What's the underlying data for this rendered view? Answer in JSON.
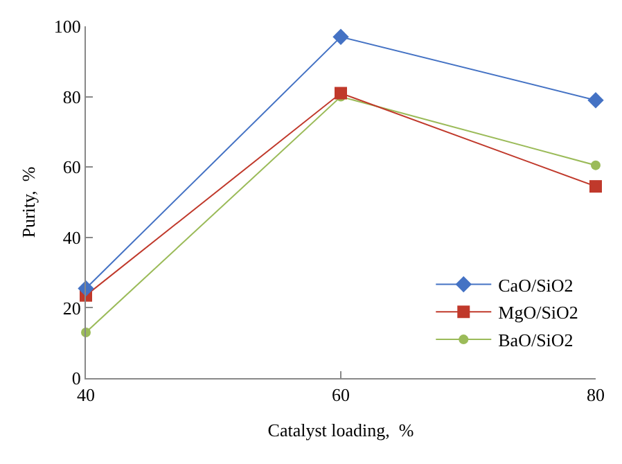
{
  "chart_data": {
    "type": "line",
    "xlabel": "Catalyst loading,  %",
    "ylabel": "Purity,  %",
    "x": [
      40,
      60,
      80
    ],
    "series": [
      {
        "name": "CaO/SiO2",
        "color": "#4472c4",
        "marker": "diamond",
        "values": [
          25.5,
          97,
          79
        ]
      },
      {
        "name": "MgO/SiO2",
        "color": "#c0392b",
        "marker": "square",
        "values": [
          23.5,
          81,
          54.5
        ]
      },
      {
        "name": "BaO/SiO2",
        "color": "#9bbb59",
        "marker": "circle",
        "values": [
          13,
          80,
          60.5
        ]
      }
    ],
    "xlim": [
      40,
      80
    ],
    "xticks": [
      40,
      60,
      80
    ],
    "ylim": [
      0,
      100
    ],
    "yticks": [
      0,
      20,
      40,
      60,
      80,
      100
    ],
    "grid": false,
    "legend": "bottom right",
    "line_style": "solid"
  }
}
